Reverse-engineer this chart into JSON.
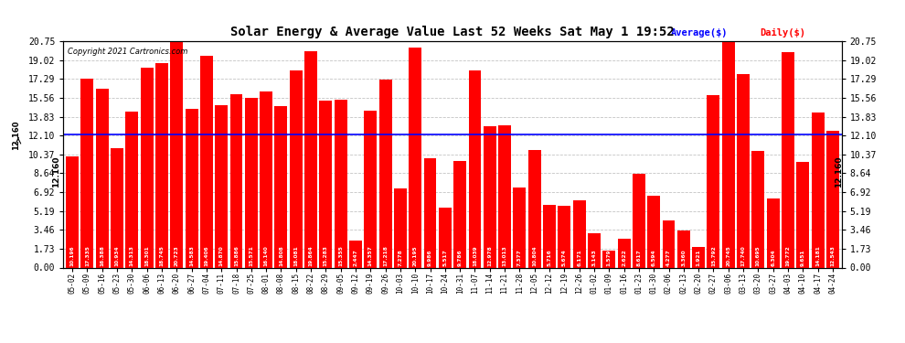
{
  "title": "Solar Energy & Average Value Last 52 Weeks Sat May 1 19:52",
  "copyright": "Copyright 2021 Cartronics.com",
  "average_label": "Average($)",
  "daily_label": "Daily($)",
  "average_value": 12.16,
  "bar_color": "#ff0000",
  "average_line_color": "#0000ff",
  "average_text_color": "#0000ff",
  "daily_text_color": "#ff0000",
  "background_color": "#ffffff",
  "grid_color": "#aaaaaa",
  "categories": [
    "05-02",
    "05-09",
    "05-16",
    "05-23",
    "05-30",
    "06-06",
    "06-13",
    "06-20",
    "06-27",
    "07-04",
    "07-11",
    "07-18",
    "07-25",
    "08-01",
    "08-08",
    "08-15",
    "08-22",
    "08-29",
    "09-05",
    "09-12",
    "09-19",
    "09-26",
    "10-03",
    "10-10",
    "10-17",
    "10-24",
    "10-31",
    "11-07",
    "11-14",
    "11-21",
    "11-28",
    "12-05",
    "12-12",
    "12-19",
    "12-26",
    "01-02",
    "01-09",
    "01-16",
    "01-23",
    "01-30",
    "02-06",
    "02-13",
    "02-20",
    "02-27",
    "03-06",
    "03-13",
    "03-20",
    "03-27",
    "04-03",
    "04-10",
    "04-17",
    "04-24"
  ],
  "values": [
    10.196,
    17.335,
    16.388,
    10.934,
    14.313,
    18.301,
    18.745,
    20.723,
    14.583,
    19.406,
    14.87,
    15.886,
    15.571,
    16.14,
    14.808,
    18.081,
    19.864,
    15.283,
    15.355,
    2.447,
    14.357,
    17.218,
    7.278,
    20.195,
    9.986,
    5.517,
    9.786,
    18.039,
    12.978,
    13.013,
    7.377,
    10.804,
    5.716,
    5.674,
    6.171,
    3.143,
    1.579,
    2.622,
    8.617,
    6.594,
    4.277,
    3.36,
    1.921,
    15.792,
    20.745,
    17.74,
    10.695,
    6.304,
    19.772,
    9.651,
    14.181,
    12.543
  ],
  "yticks": [
    0.0,
    1.73,
    3.46,
    5.19,
    6.92,
    8.64,
    10.37,
    12.1,
    13.83,
    15.56,
    17.29,
    19.02,
    20.75
  ],
  "ylim": [
    0,
    20.75
  ],
  "figsize": [
    9.9,
    3.75
  ],
  "dpi": 100
}
